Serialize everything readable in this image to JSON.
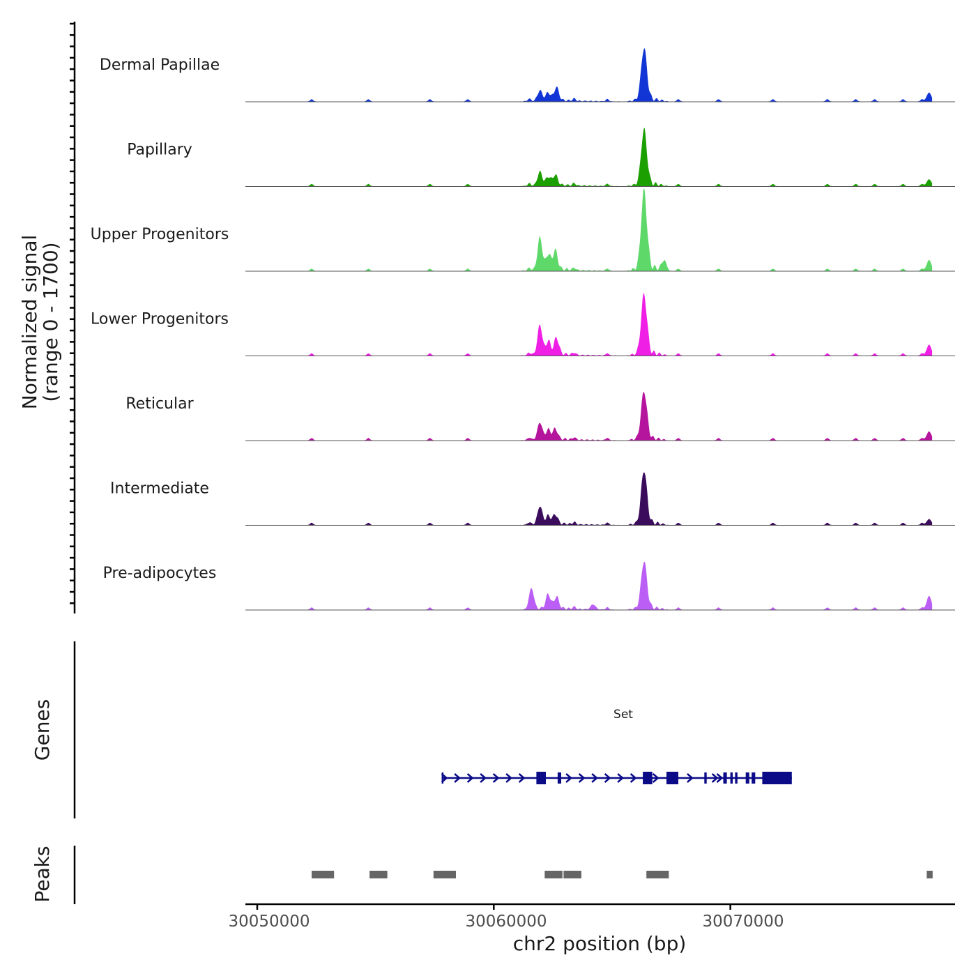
{
  "chart_data": {
    "type": "area",
    "title": "",
    "ylabel_line1": "Normalized signal",
    "ylabel_line2": "(range 0 - 1700)",
    "xlabel": "chr2 position (bp)",
    "xlim": [
      30049500,
      30079500
    ],
    "ylim": [
      0,
      1700
    ],
    "x_ticks": [
      30050000,
      30060000,
      30070000
    ],
    "x_tick_labels": [
      "30050000",
      "30060000",
      "30070000"
    ],
    "tracks": [
      {
        "name": "Dermal Papillae",
        "color": "#1236d6",
        "peaks": [
          {
            "x": 30066350,
            "h": 1020
          },
          {
            "x": 30062650,
            "h": 260
          },
          {
            "x": 30061950,
            "h": 200
          },
          {
            "x": 30062300,
            "h": 150
          },
          {
            "x": 30078400,
            "h": 180
          }
        ]
      },
      {
        "name": "Papillary",
        "color": "#1c9f00",
        "peaks": [
          {
            "x": 30066350,
            "h": 1080
          },
          {
            "x": 30061950,
            "h": 270
          },
          {
            "x": 30062600,
            "h": 200
          },
          {
            "x": 30062300,
            "h": 160
          },
          {
            "x": 30078400,
            "h": 140
          }
        ]
      },
      {
        "name": "Upper Progenitors",
        "color": "#5fd86a",
        "peaks": [
          {
            "x": 30066350,
            "h": 1530
          },
          {
            "x": 30061950,
            "h": 640
          },
          {
            "x": 30062600,
            "h": 370
          },
          {
            "x": 30062300,
            "h": 290
          },
          {
            "x": 30067200,
            "h": 200
          },
          {
            "x": 30078400,
            "h": 220
          }
        ]
      },
      {
        "name": "Lower Progenitors",
        "color": "#ef1fe6",
        "peaks": [
          {
            "x": 30066350,
            "h": 1170
          },
          {
            "x": 30061950,
            "h": 590
          },
          {
            "x": 30062650,
            "h": 320
          },
          {
            "x": 30062300,
            "h": 250
          },
          {
            "x": 30078400,
            "h": 220
          }
        ]
      },
      {
        "name": "Reticular",
        "color": "#b5149c",
        "peaks": [
          {
            "x": 30066350,
            "h": 940
          },
          {
            "x": 30061950,
            "h": 340
          },
          {
            "x": 30062600,
            "h": 200
          },
          {
            "x": 30062300,
            "h": 180
          },
          {
            "x": 30078400,
            "h": 180
          }
        ]
      },
      {
        "name": "Intermediate",
        "color": "#3c0c5c",
        "peaks": [
          {
            "x": 30066350,
            "h": 1050
          },
          {
            "x": 30061950,
            "h": 360
          },
          {
            "x": 30062600,
            "h": 180
          },
          {
            "x": 30062300,
            "h": 150
          },
          {
            "x": 30078400,
            "h": 120
          }
        ]
      },
      {
        "name": "Pre-adipocytes",
        "color": "#bb5ef5",
        "peaks": [
          {
            "x": 30066350,
            "h": 930
          },
          {
            "x": 30061600,
            "h": 400
          },
          {
            "x": 30062300,
            "h": 280
          },
          {
            "x": 30062650,
            "h": 230
          },
          {
            "x": 30064200,
            "h": 100
          },
          {
            "x": 30078400,
            "h": 280
          }
        ]
      }
    ],
    "genes": {
      "label": "Genes",
      "gene_name": "Set",
      "strand": "+",
      "color": "#0b0b88",
      "start": 30057800,
      "end": 30072600,
      "exons": [
        [
          30057800,
          30057850
        ],
        [
          30061800,
          30062200
        ],
        [
          30062700,
          30062850
        ],
        [
          30066300,
          30066700
        ],
        [
          30067300,
          30067800
        ],
        [
          30068900,
          30069000
        ],
        [
          30069700,
          30069850
        ],
        [
          30070000,
          30070100
        ],
        [
          30070200,
          30070300
        ],
        [
          30070650,
          30070800
        ],
        [
          30070900,
          30071050
        ],
        [
          30071350,
          30072600
        ]
      ]
    },
    "peaks": {
      "label": "Peaks",
      "color": "#666666",
      "regions": [
        [
          30052300,
          30053250
        ],
        [
          30054750,
          30055500
        ],
        [
          30057450,
          30058400
        ],
        [
          30062150,
          30062900
        ],
        [
          30062950,
          30063700
        ],
        [
          30066450,
          30067400
        ],
        [
          30078300,
          30078550
        ]
      ]
    }
  }
}
